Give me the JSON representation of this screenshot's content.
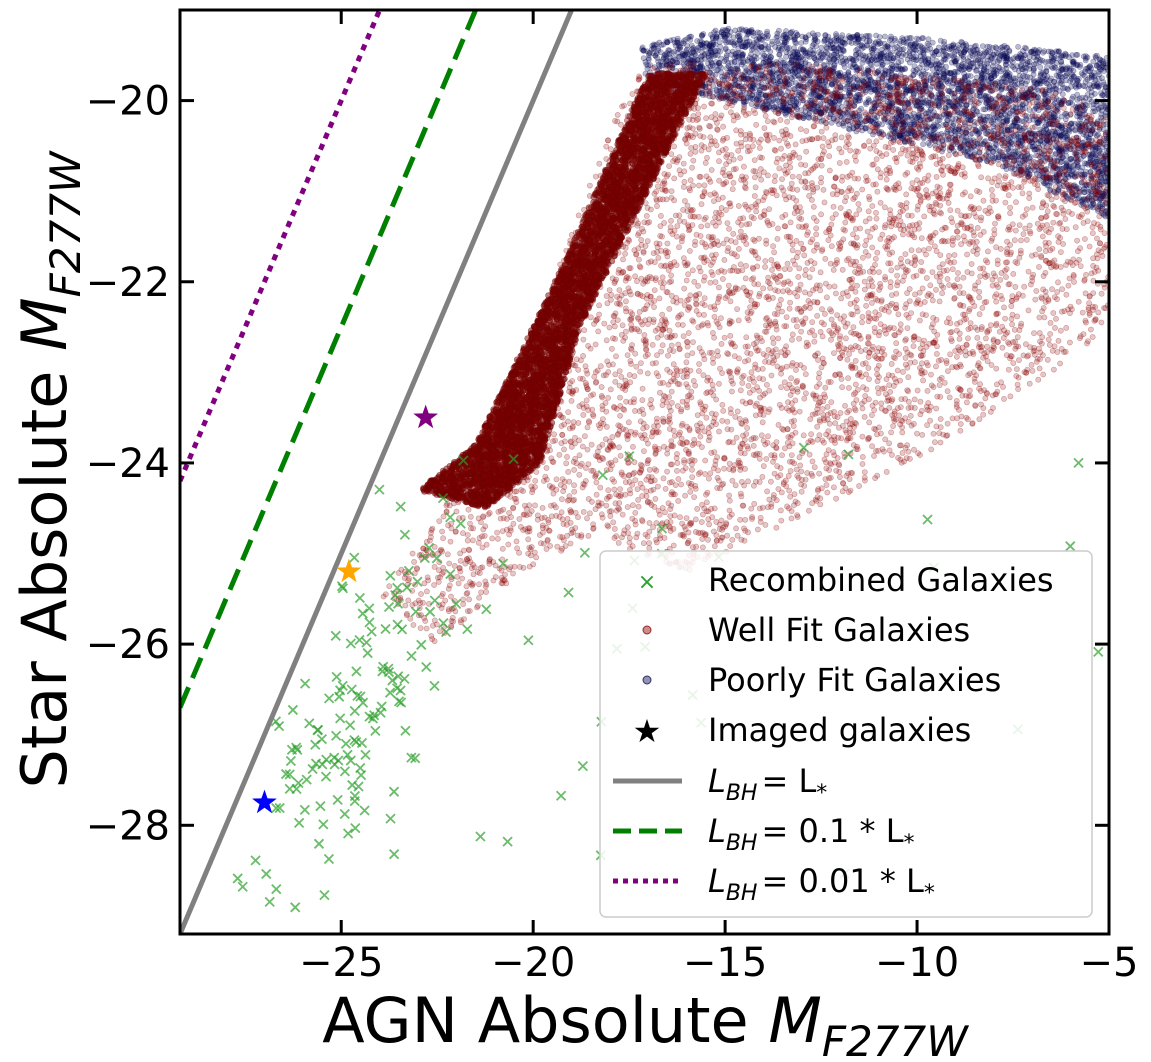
{
  "chart_data": {
    "type": "scatter",
    "xlabel": "AGN Absolute",
    "xlabel_sub": "F277W",
    "ylabel": "Star Absolute",
    "ylabel_sub": "F277W",
    "axis_symbol": "M",
    "xlim": [
      -29.2,
      -5
    ],
    "ylim": [
      -29.2,
      -19
    ],
    "y_inverted": true,
    "xticks": [
      -25,
      -20,
      -15,
      -10,
      -5
    ],
    "xtick_labels": [
      "−25",
      "−20",
      "−15",
      "−10",
      "−5"
    ],
    "yticks": [
      -20,
      -22,
      -24,
      -26,
      -28
    ],
    "ytick_labels": [
      "−20",
      "−22",
      "−24",
      "−26",
      "−28"
    ],
    "legend_position": "lower-right",
    "series": [
      {
        "name": "Recombined Galaxies",
        "marker": "x",
        "color": "#2ca02c"
      },
      {
        "name": "Well Fit Galaxies",
        "marker": "o",
        "color": "#8b0000"
      },
      {
        "name": "Poorly Fit Galaxies",
        "marker": "o",
        "color": "#0b0b55"
      },
      {
        "name": "Imaged galaxies",
        "marker": "star",
        "color": "#000000"
      }
    ],
    "imaged_galaxies": [
      {
        "x": -27.0,
        "y": -27.75,
        "color": "#0000ff"
      },
      {
        "x": -24.8,
        "y": -25.2,
        "color": "#ffa500"
      },
      {
        "x": -22.8,
        "y": -23.5,
        "color": "#800080"
      }
    ],
    "lines": [
      {
        "label": "L_BH = L_*",
        "math": {
          "lhs": "L",
          "lhs_sub": "BH",
          "rhs": "= L",
          "rhs_sub": "*",
          "factor": ""
        },
        "offset": 0,
        "style": "solid",
        "color": "#808080"
      },
      {
        "label": "L_BH = 0.1 * L_*",
        "math": {
          "lhs": "L",
          "lhs_sub": "BH",
          "rhs": "= 0.1 * L",
          "rhs_sub": "*",
          "factor": "0.1"
        },
        "offset": 2.5,
        "style": "dashed",
        "color": "#008000"
      },
      {
        "label": "L_BH = 0.01 * L_*",
        "math": {
          "lhs": "L",
          "lhs_sub": "BH",
          "rhs": "= 0.01 * L",
          "rhs_sub": "*",
          "factor": "0.01"
        },
        "offset": 5.0,
        "style": "dotted",
        "color": "#800080"
      }
    ],
    "density_model": {
      "well_fit_core_polygon": [
        [
          -23,
          -24.3
        ],
        [
          -21.5,
          -23.8
        ],
        [
          -19.2,
          -21.8
        ],
        [
          -17,
          -19.7
        ],
        [
          -15.5,
          -19.7
        ],
        [
          -17.5,
          -21.4
        ],
        [
          -18.8,
          -22.5
        ],
        [
          -19.8,
          -24
        ],
        [
          -21.2,
          -24.5
        ]
      ],
      "well_fit_hull_polygon": [
        [
          -24,
          -25.5
        ],
        [
          -22.8,
          -24.8
        ],
        [
          -21.2,
          -23.8
        ],
        [
          -19.5,
          -22
        ],
        [
          -17.3,
          -19.6
        ],
        [
          -13,
          -19.6
        ],
        [
          -6,
          -19.9
        ],
        [
          -5,
          -20.2
        ],
        [
          -5,
          -22.5
        ],
        [
          -8,
          -23.5
        ],
        [
          -13,
          -24.6
        ],
        [
          -16,
          -25.2
        ],
        [
          -18.5,
          -24.8
        ],
        [
          -20.3,
          -25.2
        ],
        [
          -22.5,
          -26
        ]
      ],
      "poorly_fit_polygon": [
        [
          -17.2,
          -19.4
        ],
        [
          -15,
          -19.2
        ],
        [
          -10,
          -19.3
        ],
        [
          -5,
          -19.5
        ],
        [
          -5,
          -21.3
        ],
        [
          -8,
          -20.7
        ],
        [
          -12,
          -20.3
        ],
        [
          -16,
          -19.9
        ],
        [
          -17,
          -19.9
        ]
      ],
      "recombined_center": [
        -24.5,
        -26.8
      ]
    }
  }
}
